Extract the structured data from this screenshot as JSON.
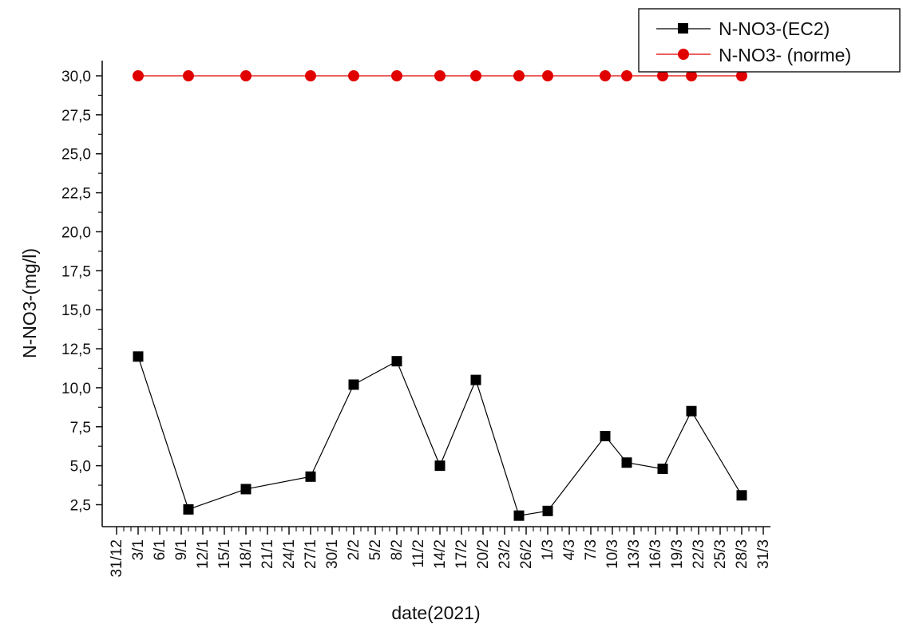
{
  "chart_data": {
    "type": "line",
    "xlabel": "date(2021)",
    "ylabel": "N-NO3-(mg/l)",
    "ylim": [
      1.0,
      30.5
    ],
    "yticks": [
      "2,5",
      "5,0",
      "7,5",
      "10,0",
      "12,5",
      "15,0",
      "17,5",
      "20,0",
      "22,5",
      "25,0",
      "27,5",
      "30,0"
    ],
    "xticks": [
      "31/12",
      "3/1",
      "6/1",
      "9/1",
      "12/1",
      "15/1",
      "18/1",
      "21/1",
      "24/1",
      "27/1",
      "30/1",
      "2/2",
      "5/2",
      "8/2",
      "11/2",
      "14/2",
      "17/2",
      "20/2",
      "23/2",
      "26/2",
      "1/3",
      "4/3",
      "7/3",
      "10/3",
      "13/3",
      "16/3",
      "19/3",
      "22/3",
      "25/3",
      "28/3",
      "31/3"
    ],
    "grid": false,
    "legend_position": "top-right",
    "series": [
      {
        "name": "N-NO3-(EC2)",
        "color": "#000000",
        "marker": "square",
        "x": [
          "3/1",
          "10/1",
          "18/1",
          "27/1",
          "2/2",
          "8/2",
          "14/2",
          "19/2",
          "25/2",
          "1/3",
          "9/3",
          "12/3",
          "17/3",
          "21/3",
          "28/3"
        ],
        "y": [
          12.0,
          2.2,
          3.5,
          4.3,
          10.2,
          11.7,
          5.0,
          10.5,
          1.8,
          2.1,
          6.9,
          5.2,
          4.8,
          8.5,
          3.1
        ]
      },
      {
        "name": "N-NO3- (norme)",
        "color": "#e00000",
        "marker": "circle",
        "x": [
          "3/1",
          "10/1",
          "18/1",
          "27/1",
          "2/2",
          "8/2",
          "14/2",
          "19/2",
          "25/2",
          "1/3",
          "9/3",
          "12/3",
          "17/3",
          "21/3",
          "28/3"
        ],
        "y": [
          30.0,
          30.0,
          30.0,
          30.0,
          30.0,
          30.0,
          30.0,
          30.0,
          30.0,
          30.0,
          30.0,
          30.0,
          30.0,
          30.0,
          30.0
        ]
      }
    ]
  }
}
